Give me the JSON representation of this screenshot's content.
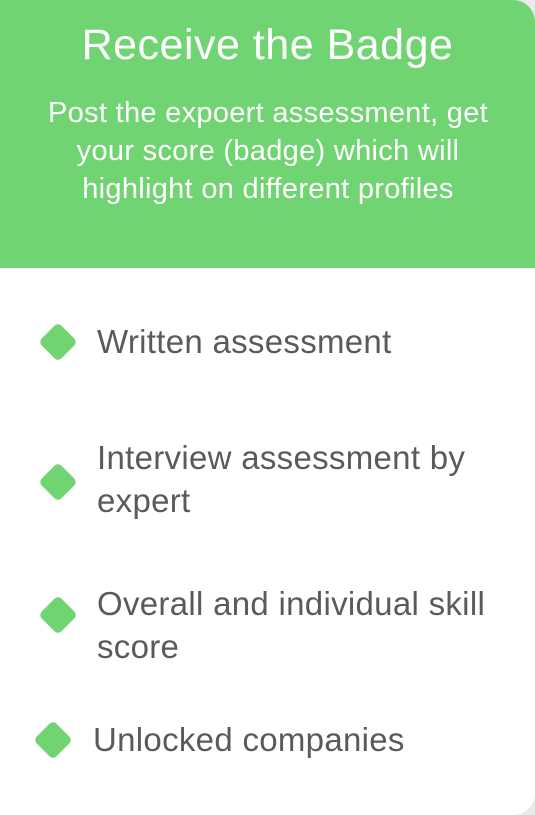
{
  "header": {
    "title": "Receive the Badge",
    "subtitle": "Post the expoert assessment, get your score (badge) which will highlight on different profiles"
  },
  "features": [
    {
      "label": "Written assessment",
      "icon": "diamond-bullet-icon"
    },
    {
      "label": "Interview assessment by expert",
      "icon": "diamond-bullet-icon"
    },
    {
      "label": "Overall and individual skill score",
      "icon": "diamond-bullet-icon"
    },
    {
      "label": "Unlocked companies",
      "icon": "diamond-bullet-icon"
    }
  ],
  "colors": {
    "accent": "#70d472",
    "text": "#5a5a5a",
    "background": "#ffffff"
  }
}
